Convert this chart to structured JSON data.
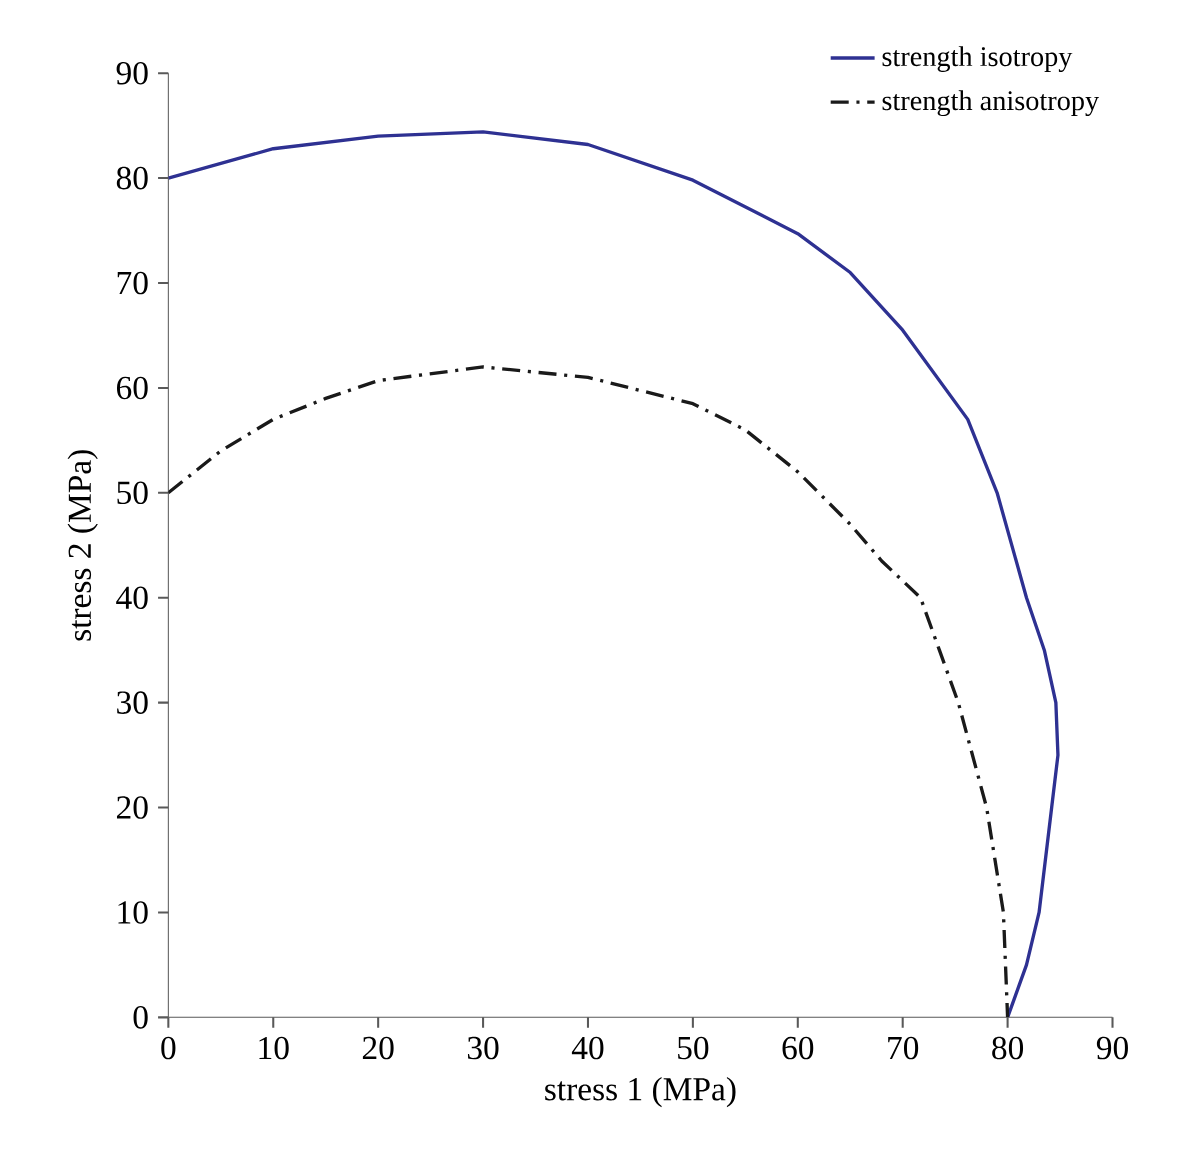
{
  "chart_data": {
    "type": "line",
    "xlabel": "stress 1 (MPa)",
    "ylabel": "stress 2 (MPa)",
    "xlim": [
      0,
      90
    ],
    "ylim": [
      0,
      90
    ],
    "xticks": [
      0,
      10,
      20,
      30,
      40,
      50,
      60,
      70,
      80,
      90
    ],
    "yticks": [
      0,
      10,
      20,
      30,
      40,
      50,
      60,
      70,
      80,
      90
    ],
    "legend": "top right",
    "grid": false,
    "marker": "none",
    "series": [
      {
        "name": "strength isotropy",
        "color": "#2e3192",
        "line_style": "solid",
        "x": [
          0,
          10,
          20,
          30,
          40,
          50,
          60,
          65,
          70,
          76.2,
          79,
          81.8,
          83.5,
          84.6,
          84.8,
          84.2,
          83,
          81.8,
          80
        ],
        "values": [
          80,
          82.8,
          84,
          84.4,
          83.2,
          79.8,
          74.7,
          71,
          65.5,
          57,
          50,
          40,
          35,
          30,
          25,
          20,
          10,
          5,
          0
        ]
      },
      {
        "name": "strength anisotropy",
        "color": "#1a1a1a",
        "line_style": "dashdot",
        "x": [
          0,
          5,
          10,
          15,
          20,
          30,
          40,
          50,
          55,
          60,
          65,
          68,
          71.7,
          73.5,
          75.3,
          78,
          79.6,
          80
        ],
        "values": [
          50,
          54,
          57,
          59,
          60.7,
          62,
          61,
          58.5,
          56,
          52,
          47,
          43.5,
          40,
          35,
          30,
          20,
          10,
          0
        ]
      }
    ]
  }
}
